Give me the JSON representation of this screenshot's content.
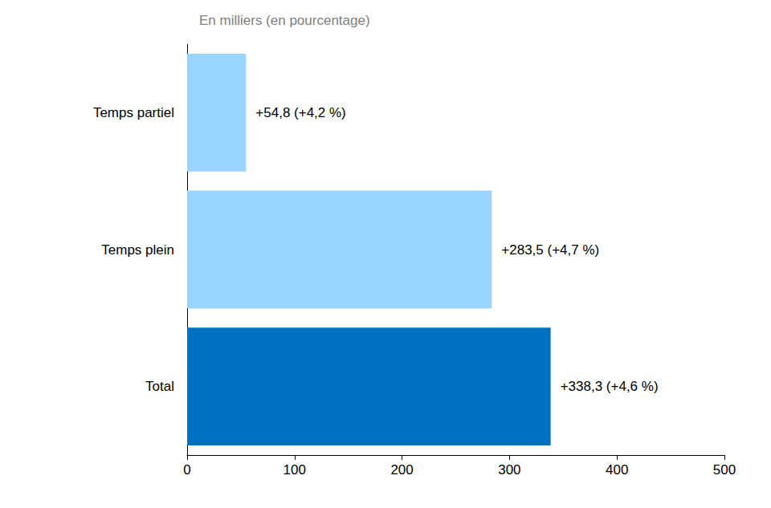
{
  "chart_data": {
    "type": "bar",
    "orientation": "horizontal",
    "title": "En milliers (en pourcentage)",
    "categories": [
      "Temps partiel",
      "Temps plein",
      "Total"
    ],
    "values": [
      54.8,
      283.5,
      338.3
    ],
    "value_labels": [
      "+54,8 (+4,2 %)",
      "+283,5 (+4,7 %)",
      "+338,3 (+4,6 %)"
    ],
    "colors": [
      "#99d5ff",
      "#99d5ff",
      "#0070c0"
    ],
    "xlim": [
      0,
      500
    ],
    "xticks": [
      0,
      100,
      200,
      300,
      400,
      500
    ],
    "grid": false,
    "data_labels": true
  }
}
